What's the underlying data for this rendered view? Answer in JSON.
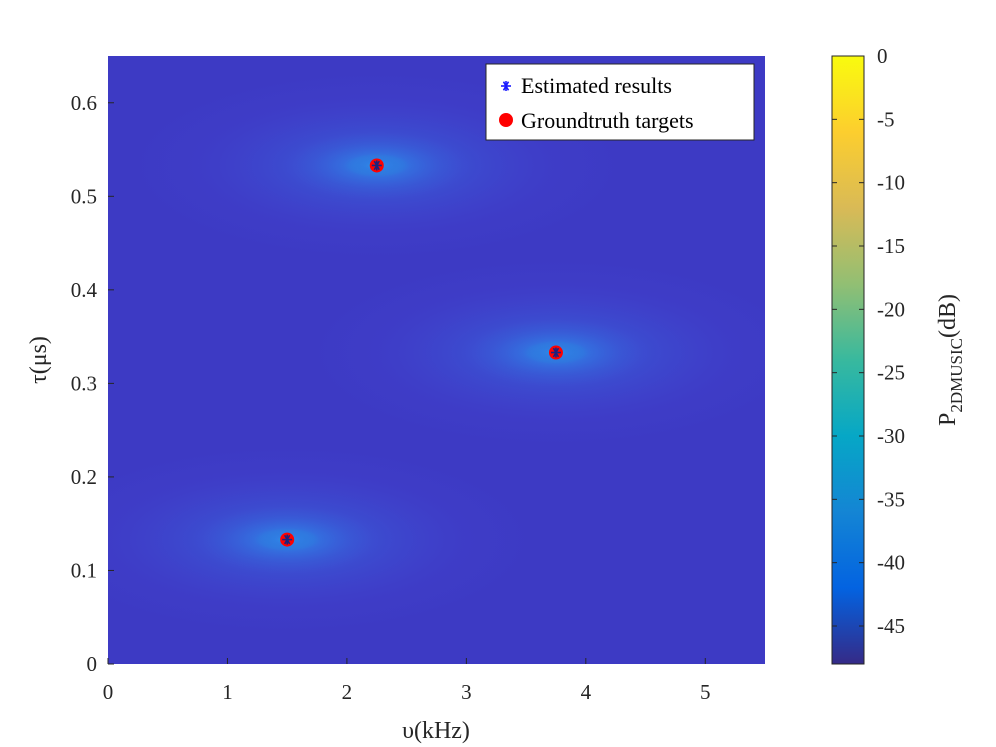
{
  "chart_data": {
    "type": "heatmap",
    "xlabel": "υ(kHz)",
    "ylabel": "τ(μs)",
    "xlim": [
      0,
      5.5
    ],
    "ylim": [
      0,
      0.65
    ],
    "xticks": [
      0,
      1,
      2,
      3,
      4,
      5
    ],
    "xtick_labels": [
      "0",
      "1",
      "2",
      "3",
      "4",
      "5"
    ],
    "yticks": [
      0,
      0.1,
      0.2,
      0.3,
      0.4,
      0.5,
      0.6
    ],
    "ytick_labels": [
      "0",
      "0.1",
      "0.2",
      "0.3",
      "0.4",
      "0.5",
      "0.6"
    ],
    "colorbar": {
      "label_main": "P",
      "label_sub": "2DMUSIC",
      "label_unit": "(dB)",
      "range": [
        -48,
        0
      ],
      "ticks": [
        0,
        -5,
        -10,
        -15,
        -20,
        -25,
        -30,
        -35,
        -40,
        -45
      ],
      "tick_labels": [
        "0",
        "-5",
        "-10",
        "-15",
        "-20",
        "-25",
        "-30",
        "-35",
        "-40",
        "-45"
      ],
      "colormap": "parula"
    },
    "background_level_db": -46,
    "peaks": [
      {
        "x": 2.25,
        "y": 0.533,
        "db": 0
      },
      {
        "x": 3.75,
        "y": 0.333,
        "db": 0
      },
      {
        "x": 1.5,
        "y": 0.133,
        "db": 0
      }
    ],
    "series": [
      {
        "name": "Estimated results",
        "marker": "asterisk",
        "color": "#1a1aff",
        "points": [
          [
            2.25,
            0.533
          ],
          [
            3.75,
            0.333
          ],
          [
            1.5,
            0.133
          ]
        ]
      },
      {
        "name": "Groundtruth targets",
        "marker": "filled-circle",
        "color": "#ff0000",
        "points": [
          [
            2.25,
            0.533
          ],
          [
            3.75,
            0.333
          ],
          [
            1.5,
            0.133
          ]
        ]
      }
    ],
    "legend_position": "top-right",
    "grid": false
  }
}
